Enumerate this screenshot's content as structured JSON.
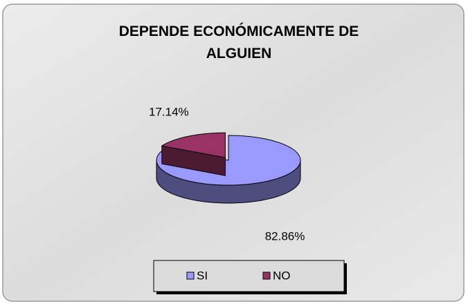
{
  "chart_data": {
    "type": "pie3d",
    "title": "DEPENDE ECONÓMICAMENTE DE ALGUIEN",
    "categories": [
      "SI",
      "NO"
    ],
    "values": [
      82.86,
      17.14
    ],
    "value_labels": [
      "82.86%",
      "17.14%"
    ],
    "colors": [
      "#9999ff",
      "#993366"
    ],
    "legend": "bottom"
  }
}
